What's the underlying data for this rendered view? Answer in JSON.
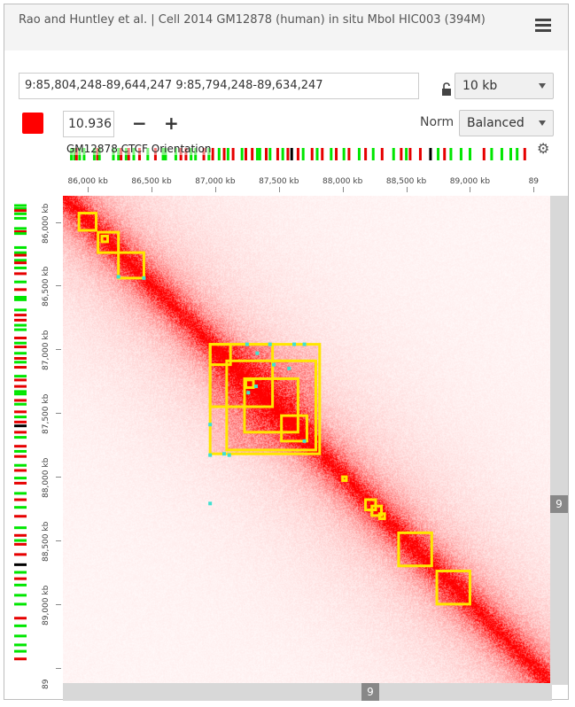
{
  "header": {
    "title": "Rao and Huntley et al. | Cell 2014 GM12878 (human) in situ MboI HIC003 (394M)",
    "menu_icon": "hamburger-menu-icon"
  },
  "controls": {
    "locus_value": "9:85,804,248-89,644,247 9:85,794,248-89,634,247",
    "lock_icon": "unlocked-icon",
    "resolution": "10 kb",
    "color_scale_color": "#ff0000",
    "color_scale_max": "10.936",
    "minus_label": "−",
    "plus_label": "+",
    "norm_label": "Norm",
    "norm_value": "Balanced"
  },
  "track": {
    "label": "GM12878 CTCF Orientation",
    "settings_icon": "gear-icon",
    "colors": {
      "forward": "#00e600",
      "reverse": "#e60000",
      "both": "#000000"
    },
    "motifs_kb": [
      [
        85860,
        "f"
      ],
      [
        85885,
        "f"
      ],
      [
        85900,
        "r"
      ],
      [
        85925,
        "f"
      ],
      [
        85960,
        "f"
      ],
      [
        86040,
        "f"
      ],
      [
        86065,
        "r"
      ],
      [
        86080,
        "f"
      ],
      [
        86190,
        "f"
      ],
      [
        86230,
        "f"
      ],
      [
        86250,
        "r"
      ],
      [
        86290,
        "f"
      ],
      [
        86310,
        "r"
      ],
      [
        86350,
        "f"
      ],
      [
        86395,
        "r"
      ],
      [
        86460,
        "f"
      ],
      [
        86520,
        "r"
      ],
      [
        86580,
        "f"
      ],
      [
        86600,
        "f"
      ],
      [
        86680,
        "f"
      ],
      [
        86720,
        "r"
      ],
      [
        86760,
        "r"
      ],
      [
        86800,
        "f"
      ],
      [
        86835,
        "f"
      ],
      [
        86900,
        "r"
      ],
      [
        86940,
        "f"
      ],
      [
        86970,
        "r"
      ],
      [
        87020,
        "f"
      ],
      [
        87060,
        "r"
      ],
      [
        87090,
        "f"
      ],
      [
        87130,
        "r"
      ],
      [
        87200,
        "f"
      ],
      [
        87230,
        "r"
      ],
      [
        87280,
        "r"
      ],
      [
        87320,
        "f"
      ],
      [
        87340,
        "f"
      ],
      [
        87390,
        "r"
      ],
      [
        87420,
        "f"
      ],
      [
        87480,
        "r"
      ],
      [
        87520,
        "f"
      ],
      [
        87560,
        "r"
      ],
      [
        87590,
        "b"
      ],
      [
        87640,
        "r"
      ],
      [
        87680,
        "f"
      ],
      [
        87750,
        "r"
      ],
      [
        87790,
        "f"
      ],
      [
        87830,
        "r"
      ],
      [
        87900,
        "f"
      ],
      [
        87940,
        "r"
      ],
      [
        88000,
        "f"
      ],
      [
        88040,
        "r"
      ],
      [
        88120,
        "f"
      ],
      [
        88170,
        "r"
      ],
      [
        88230,
        "f"
      ],
      [
        88300,
        "r"
      ],
      [
        88390,
        "f"
      ],
      [
        88450,
        "r"
      ],
      [
        88490,
        "f"
      ],
      [
        88520,
        "r"
      ],
      [
        88600,
        "r"
      ],
      [
        88680,
        "b"
      ],
      [
        88740,
        "f"
      ],
      [
        88790,
        "r"
      ],
      [
        88840,
        "f"
      ],
      [
        88920,
        "f"
      ],
      [
        88990,
        "f"
      ],
      [
        89100,
        "r"
      ],
      [
        89160,
        "f"
      ],
      [
        89240,
        "f"
      ],
      [
        89310,
        "f"
      ],
      [
        89360,
        "f"
      ],
      [
        89420,
        "r"
      ]
    ]
  },
  "axis": {
    "ticks": [
      "86,000 kb",
      "86,500 kb",
      "87,000 kb",
      "87,500 kb",
      "88,000 kb",
      "88,500 kb",
      "89,000 kb",
      "89"
    ],
    "ticks_kb": [
      86000,
      86500,
      87000,
      87500,
      88000,
      88500,
      89000,
      89500
    ],
    "x_start_kb": 85804,
    "y_start_kb": 85794,
    "span_kb": 3840
  },
  "domains": {
    "color": "#ffe600",
    "anchor_color": "#40e0d0",
    "boxes_kb": [
      [
        85930,
        85930,
        86065,
        86065
      ],
      [
        86080,
        86080,
        86240,
        86240
      ],
      [
        86110,
        86110,
        86155,
        86155
      ],
      [
        86240,
        86240,
        86440,
        86440
      ],
      [
        86960,
        86960,
        87120,
        87120
      ],
      [
        86960,
        86960,
        87450,
        87450
      ],
      [
        86960,
        86960,
        87820,
        87820
      ],
      [
        87090,
        87090,
        87790,
        87790
      ],
      [
        87230,
        87230,
        87650,
        87650
      ],
      [
        87240,
        87240,
        87300,
        87300
      ],
      [
        87520,
        87520,
        87720,
        87720
      ],
      [
        88000,
        88000,
        88030,
        88030
      ],
      [
        88180,
        88180,
        88260,
        88260
      ],
      [
        88230,
        88230,
        88305,
        88305
      ],
      [
        88290,
        88290,
        88330,
        88330
      ],
      [
        88440,
        88440,
        88700,
        88700
      ],
      [
        88740,
        88740,
        89000,
        89000
      ]
    ],
    "anchors_kb": [
      [
        86440,
        86440
      ],
      [
        86240,
        86430
      ],
      [
        87250,
        86960
      ],
      [
        87330,
        87030
      ],
      [
        87430,
        86960
      ],
      [
        87620,
        86960
      ],
      [
        87700,
        86960
      ],
      [
        87580,
        87150
      ],
      [
        87320,
        87290
      ],
      [
        87260,
        87340
      ],
      [
        87700,
        87720
      ],
      [
        87070,
        87820
      ],
      [
        86960,
        87830
      ],
      [
        87110,
        87830
      ],
      [
        86960,
        88210
      ],
      [
        86960,
        87590
      ],
      [
        87460,
        87120
      ]
    ]
  },
  "scrollbars": {
    "right_label": "9",
    "bottom_label": "9"
  }
}
